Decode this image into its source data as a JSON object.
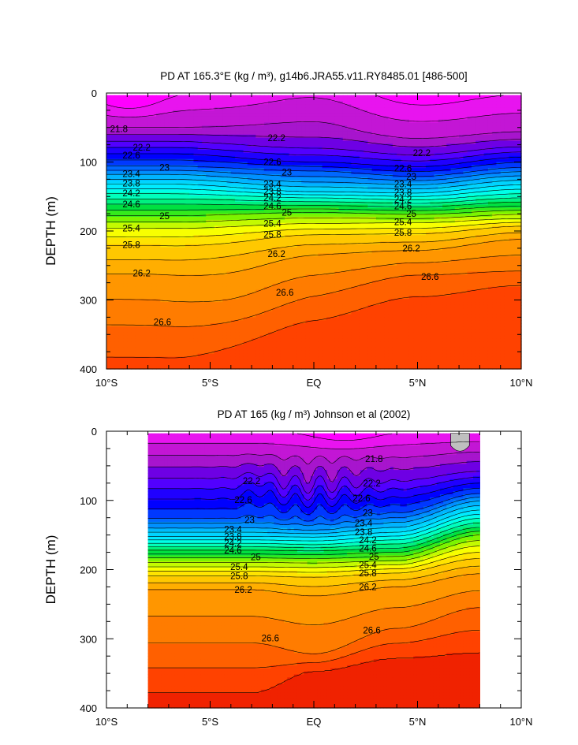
{
  "chart_data": [
    {
      "type": "heatmap",
      "title": "PD AT 165.3°E (kg / m³), g14b6.JRA55.v11.RY8485.01 [486-500]",
      "xlabel": "",
      "ylabel": "DEPTH (m)",
      "xlim": [
        -10,
        10
      ],
      "ylim": [
        0,
        400
      ],
      "x_ticks": [
        -10,
        -5,
        0,
        5,
        10
      ],
      "x_tick_labels": [
        "10°S",
        "5°S",
        "EQ",
        "5°N",
        "10°N"
      ],
      "y_ticks": [
        0,
        100,
        200,
        300,
        400
      ],
      "y_tick_labels": [
        "0",
        "100",
        "200",
        "300",
        "400"
      ],
      "data_extent": {
        "lat": [
          -10,
          10
        ],
        "depth": [
          3,
          400
        ]
      },
      "contour_interval": 0.2,
      "contour_range": [
        21.4,
        27.0
      ],
      "contour_labels": [
        {
          "lat": -9.4,
          "depth": 52,
          "text": "21.8"
        },
        {
          "lat": -8.3,
          "depth": 79,
          "text": "22.2"
        },
        {
          "lat": -8.8,
          "depth": 90,
          "text": "22.6"
        },
        {
          "lat": -7.2,
          "depth": 108,
          "text": "23"
        },
        {
          "lat": -8.8,
          "depth": 117,
          "text": "23.4"
        },
        {
          "lat": -8.8,
          "depth": 131,
          "text": "23.8"
        },
        {
          "lat": -8.8,
          "depth": 145,
          "text": "24.2"
        },
        {
          "lat": -8.8,
          "depth": 161,
          "text": "24.6"
        },
        {
          "lat": -7.2,
          "depth": 178,
          "text": "25"
        },
        {
          "lat": -8.8,
          "depth": 196,
          "text": "25.4"
        },
        {
          "lat": -8.8,
          "depth": 220,
          "text": "25.8"
        },
        {
          "lat": -8.3,
          "depth": 261,
          "text": "26.2"
        },
        {
          "lat": -7.3,
          "depth": 332,
          "text": "26.6"
        },
        {
          "lat": -1.8,
          "depth": 65,
          "text": "22.2"
        },
        {
          "lat": -2.0,
          "depth": 100,
          "text": "22.6"
        },
        {
          "lat": -1.3,
          "depth": 115,
          "text": "23"
        },
        {
          "lat": -2.0,
          "depth": 132,
          "text": "23.4"
        },
        {
          "lat": -2.0,
          "depth": 143,
          "text": "23.8"
        },
        {
          "lat": -2.0,
          "depth": 152,
          "text": "24.2"
        },
        {
          "lat": -2.0,
          "depth": 164,
          "text": "24.6"
        },
        {
          "lat": -1.3,
          "depth": 173,
          "text": "25"
        },
        {
          "lat": -2.0,
          "depth": 189,
          "text": "25.4"
        },
        {
          "lat": -2.0,
          "depth": 205,
          "text": "25.8"
        },
        {
          "lat": -1.8,
          "depth": 233,
          "text": "26.2"
        },
        {
          "lat": -1.4,
          "depth": 289,
          "text": "26.6"
        },
        {
          "lat": 5.2,
          "depth": 87,
          "text": "22.2"
        },
        {
          "lat": 4.3,
          "depth": 109,
          "text": "22.6"
        },
        {
          "lat": 4.7,
          "depth": 121,
          "text": "23"
        },
        {
          "lat": 4.3,
          "depth": 132,
          "text": "23.4"
        },
        {
          "lat": 4.3,
          "depth": 144,
          "text": "23.8"
        },
        {
          "lat": 4.3,
          "depth": 154,
          "text": "24.2"
        },
        {
          "lat": 4.3,
          "depth": 164,
          "text": "24.6"
        },
        {
          "lat": 4.7,
          "depth": 175,
          "text": "25"
        },
        {
          "lat": 4.3,
          "depth": 187,
          "text": "25.4"
        },
        {
          "lat": 4.3,
          "depth": 202,
          "text": "25.8"
        },
        {
          "lat": 4.7,
          "depth": 225,
          "text": "26.2"
        },
        {
          "lat": 5.6,
          "depth": 266,
          "text": "26.6"
        }
      ]
    },
    {
      "type": "heatmap",
      "title": "PD AT 165 (kg / m³) Johnson et al (2002)",
      "xlabel": "",
      "ylabel": "DEPTH (m)",
      "xlim": [
        -10,
        10
      ],
      "ylim": [
        0,
        400
      ],
      "x_ticks": [
        -10,
        -5,
        0,
        5,
        10
      ],
      "x_tick_labels": [
        "10°S",
        "5°S",
        "EQ",
        "5°N",
        "10°N"
      ],
      "y_ticks": [
        0,
        100,
        200,
        300,
        400
      ],
      "y_tick_labels": [
        "0",
        "100",
        "200",
        "300",
        "400"
      ],
      "data_extent": {
        "lat": [
          -8,
          8
        ],
        "depth": [
          3,
          400
        ]
      },
      "missing_region": {
        "lat": [
          6.6,
          7.5
        ],
        "depth": [
          3,
          30
        ]
      },
      "contour_interval": 0.2,
      "contour_range": [
        21.4,
        27.0
      ],
      "contour_labels": [
        {
          "lat": -3.0,
          "depth": 72,
          "text": "22.2"
        },
        {
          "lat": -3.4,
          "depth": 99,
          "text": "22.6"
        },
        {
          "lat": -3.1,
          "depth": 128,
          "text": "23"
        },
        {
          "lat": -3.9,
          "depth": 142,
          "text": "23.4"
        },
        {
          "lat": -3.9,
          "depth": 152,
          "text": "23.8"
        },
        {
          "lat": -3.9,
          "depth": 162,
          "text": "24.2"
        },
        {
          "lat": -3.9,
          "depth": 172,
          "text": "24.6"
        },
        {
          "lat": -2.8,
          "depth": 182,
          "text": "25"
        },
        {
          "lat": -3.6,
          "depth": 196,
          "text": "25.4"
        },
        {
          "lat": -3.6,
          "depth": 209,
          "text": "25.8"
        },
        {
          "lat": -3.4,
          "depth": 229,
          "text": "26.2"
        },
        {
          "lat": -2.1,
          "depth": 299,
          "text": "26.6"
        },
        {
          "lat": 2.9,
          "depth": 40,
          "text": "21.8"
        },
        {
          "lat": 2.8,
          "depth": 75,
          "text": "22.2"
        },
        {
          "lat": 2.3,
          "depth": 97,
          "text": "22.6"
        },
        {
          "lat": 2.6,
          "depth": 118,
          "text": "23"
        },
        {
          "lat": 2.4,
          "depth": 133,
          "text": "23.4"
        },
        {
          "lat": 2.4,
          "depth": 146,
          "text": "23.8"
        },
        {
          "lat": 2.6,
          "depth": 157,
          "text": "24.2"
        },
        {
          "lat": 2.6,
          "depth": 169,
          "text": "24.6"
        },
        {
          "lat": 2.9,
          "depth": 181,
          "text": "25"
        },
        {
          "lat": 2.6,
          "depth": 193,
          "text": "25.4"
        },
        {
          "lat": 2.6,
          "depth": 205,
          "text": "25.8"
        },
        {
          "lat": 2.6,
          "depth": 225,
          "text": "26.2"
        },
        {
          "lat": 2.8,
          "depth": 288,
          "text": "26.6"
        }
      ]
    }
  ]
}
